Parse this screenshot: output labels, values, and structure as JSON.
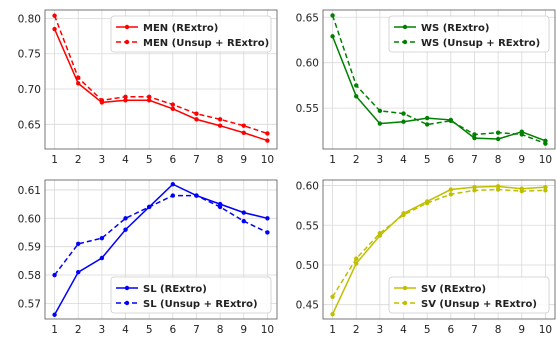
{
  "chart_data": [
    {
      "type": "line",
      "x": [
        1,
        2,
        3,
        4,
        5,
        6,
        7,
        8,
        9,
        10
      ],
      "xticks": [
        "1",
        "2",
        "3",
        "4",
        "5",
        "6",
        "7",
        "8",
        "9",
        "10"
      ],
      "ylim": [
        0.615,
        0.812
      ],
      "yticks": [
        "0.65",
        "0.70",
        "0.75",
        "0.80"
      ],
      "ytick_values": [
        0.65,
        0.7,
        0.75,
        0.8
      ],
      "grid": true,
      "legend_position": "top-right",
      "color": "#ff0000",
      "series": [
        {
          "name": "MEN (RExtro)",
          "style": "solid",
          "values": [
            0.785,
            0.708,
            0.681,
            0.684,
            0.684,
            0.672,
            0.657,
            0.648,
            0.638,
            0.627
          ]
        },
        {
          "name": "MEN (Unsup + RExtro)",
          "style": "dashed",
          "values": [
            0.804,
            0.716,
            0.684,
            0.689,
            0.689,
            0.678,
            0.665,
            0.657,
            0.648,
            0.637
          ]
        }
      ]
    },
    {
      "type": "line",
      "x": [
        1,
        2,
        3,
        4,
        5,
        6,
        7,
        8,
        9,
        10
      ],
      "xticks": [
        "1",
        "2",
        "3",
        "4",
        "5",
        "6",
        "7",
        "8",
        "9",
        "10"
      ],
      "ylim": [
        0.505,
        0.658
      ],
      "yticks": [
        "0.55",
        "0.60",
        "0.65"
      ],
      "ytick_values": [
        0.55,
        0.6,
        0.65
      ],
      "grid": true,
      "legend_position": "top-right",
      "color": "#008000",
      "series": [
        {
          "name": "WS (RExtro)",
          "style": "solid",
          "values": [
            0.629,
            0.563,
            0.533,
            0.535,
            0.539,
            0.537,
            0.517,
            0.516,
            0.524,
            0.514
          ]
        },
        {
          "name": "WS (Unsup + RExtro)",
          "style": "dashed",
          "values": [
            0.652,
            0.575,
            0.547,
            0.544,
            0.532,
            0.536,
            0.521,
            0.523,
            0.521,
            0.511
          ]
        }
      ]
    },
    {
      "type": "line",
      "x": [
        1,
        2,
        3,
        4,
        5,
        6,
        7,
        8,
        9,
        10
      ],
      "xticks": [
        "1",
        "2",
        "3",
        "4",
        "5",
        "6",
        "7",
        "8",
        "9",
        "10"
      ],
      "ylim": [
        0.5645,
        0.6135
      ],
      "yticks": [
        "0.57",
        "0.58",
        "0.59",
        "0.60",
        "0.61"
      ],
      "ytick_values": [
        0.57,
        0.58,
        0.59,
        0.6,
        0.61
      ],
      "grid": true,
      "legend_position": "bottom-right",
      "color": "#0000ff",
      "series": [
        {
          "name": "SL (RExtro)",
          "style": "solid",
          "values": [
            0.566,
            0.581,
            0.586,
            0.596,
            0.604,
            0.612,
            0.608,
            0.605,
            0.602,
            0.6
          ]
        },
        {
          "name": "SL (Unsup + RExtro)",
          "style": "dashed",
          "values": [
            0.58,
            0.591,
            0.593,
            0.6,
            0.604,
            0.608,
            0.608,
            0.604,
            0.599,
            0.595
          ]
        }
      ]
    },
    {
      "type": "line",
      "x": [
        1,
        2,
        3,
        4,
        5,
        6,
        7,
        8,
        9,
        10
      ],
      "xticks": [
        "1",
        "2",
        "3",
        "4",
        "5",
        "6",
        "7",
        "8",
        "9",
        "10"
      ],
      "ylim": [
        0.432,
        0.607
      ],
      "yticks": [
        "0.45",
        "0.50",
        "0.55",
        "0.60"
      ],
      "ytick_values": [
        0.45,
        0.5,
        0.55,
        0.6
      ],
      "grid": true,
      "legend_position": "bottom-right",
      "color": "#bfbf00",
      "series": [
        {
          "name": "SV (RExtro)",
          "style": "solid",
          "values": [
            0.438,
            0.502,
            0.537,
            0.565,
            0.58,
            0.595,
            0.598,
            0.599,
            0.596,
            0.598
          ]
        },
        {
          "name": "SV (Unsup + RExtro)",
          "style": "dashed",
          "values": [
            0.46,
            0.508,
            0.54,
            0.563,
            0.578,
            0.589,
            0.594,
            0.595,
            0.593,
            0.594
          ]
        }
      ]
    }
  ]
}
